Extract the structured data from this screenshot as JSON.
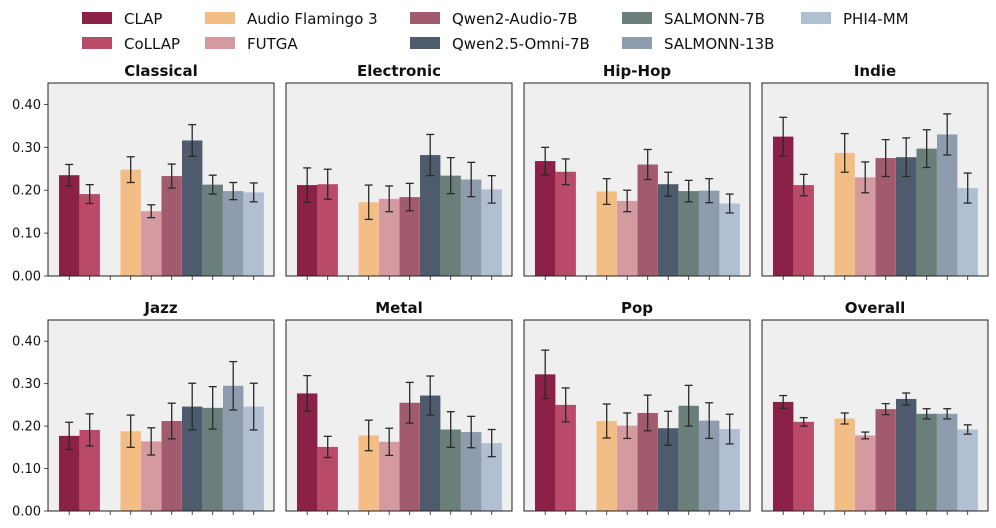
{
  "chart_data": {
    "type": "bar",
    "ylim": [
      0,
      0.45
    ],
    "yticks": [
      "0.00",
      "0.10",
      "0.20",
      "0.30",
      "0.40"
    ],
    "ytick_values": [
      0,
      0.1,
      0.2,
      0.3,
      0.4
    ],
    "legend_position": "top",
    "series": [
      {
        "name": "CLAP",
        "color": "#8b2146"
      },
      {
        "name": "CoLLAP",
        "color": "#b94a68"
      },
      {
        "name": "Audio Flamingo 3",
        "color": "#f2be86"
      },
      {
        "name": "FUTGA",
        "color": "#d59a9f"
      },
      {
        "name": "Qwen2-Audio-7B",
        "color": "#a25b6e"
      },
      {
        "name": "Qwen2.5-Omni-7B",
        "color": "#4d5b6c"
      },
      {
        "name": "SALMONN-7B",
        "color": "#6b7f7a"
      },
      {
        "name": "SALMONN-13B",
        "color": "#8f9cae"
      },
      {
        "name": "PHI4-MM",
        "color": "#b1bfd3"
      }
    ],
    "panels": [
      {
        "title": "Classical",
        "values": [
          0.235,
          0.191,
          0.248,
          0.151,
          0.233,
          0.316,
          0.213,
          0.198,
          0.195
        ],
        "errors": [
          0.025,
          0.022,
          0.03,
          0.015,
          0.028,
          0.037,
          0.022,
          0.02,
          0.022
        ]
      },
      {
        "title": "Electronic",
        "values": [
          0.212,
          0.214,
          0.172,
          0.18,
          0.184,
          0.282,
          0.234,
          0.225,
          0.202
        ],
        "errors": [
          0.04,
          0.035,
          0.04,
          0.03,
          0.032,
          0.048,
          0.042,
          0.04,
          0.032
        ]
      },
      {
        "title": "Hip-Hop",
        "values": [
          0.268,
          0.243,
          0.197,
          0.175,
          0.26,
          0.214,
          0.198,
          0.199,
          0.169
        ],
        "errors": [
          0.032,
          0.03,
          0.03,
          0.025,
          0.035,
          0.028,
          0.025,
          0.028,
          0.022
        ]
      },
      {
        "title": "Indie",
        "values": [
          0.325,
          0.212,
          0.287,
          0.23,
          0.275,
          0.277,
          0.297,
          0.33,
          0.205
        ],
        "errors": [
          0.045,
          0.025,
          0.045,
          0.036,
          0.043,
          0.045,
          0.044,
          0.048,
          0.035
        ]
      },
      {
        "title": "Jazz",
        "values": [
          0.177,
          0.191,
          0.188,
          0.164,
          0.212,
          0.246,
          0.243,
          0.295,
          0.246
        ],
        "errors": [
          0.032,
          0.038,
          0.038,
          0.032,
          0.042,
          0.055,
          0.05,
          0.057,
          0.055
        ]
      },
      {
        "title": "Metal",
        "values": [
          0.277,
          0.151,
          0.178,
          0.163,
          0.255,
          0.272,
          0.192,
          0.186,
          0.16
        ],
        "errors": [
          0.042,
          0.025,
          0.036,
          0.032,
          0.048,
          0.046,
          0.042,
          0.037,
          0.032
        ]
      },
      {
        "title": "Pop",
        "values": [
          0.322,
          0.25,
          0.212,
          0.201,
          0.231,
          0.195,
          0.248,
          0.213,
          0.193
        ],
        "errors": [
          0.057,
          0.04,
          0.04,
          0.03,
          0.042,
          0.04,
          0.048,
          0.042,
          0.035
        ]
      },
      {
        "title": "Overall",
        "values": [
          0.257,
          0.21,
          0.218,
          0.178,
          0.24,
          0.264,
          0.229,
          0.229,
          0.192
        ],
        "errors": [
          0.015,
          0.01,
          0.013,
          0.008,
          0.013,
          0.014,
          0.012,
          0.012,
          0.011
        ]
      }
    ]
  }
}
